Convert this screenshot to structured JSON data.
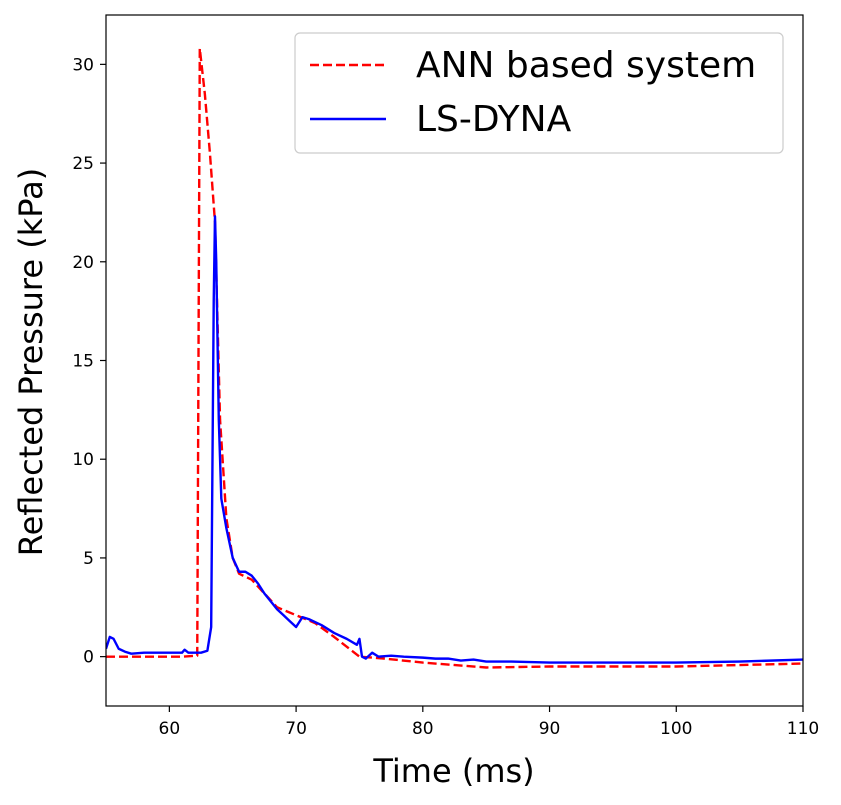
{
  "chart_data": {
    "type": "line",
    "xlabel": "Time (ms)",
    "ylabel": "Reflected Pressure (kPa)",
    "xlim": [
      55,
      110
    ],
    "ylim": [
      -2.5,
      32.5
    ],
    "xticks": [
      60,
      70,
      80,
      90,
      100,
      110
    ],
    "yticks": [
      0,
      5,
      10,
      15,
      20,
      25,
      30
    ],
    "grid": false,
    "legend_position": "top-right",
    "series": [
      {
        "name": "ANN based system",
        "color": "#ff0000",
        "style": "dashed",
        "points": [
          [
            55,
            0.0
          ],
          [
            58,
            0.0
          ],
          [
            61,
            0.0
          ],
          [
            62.2,
            0.05
          ],
          [
            62.4,
            30.8
          ],
          [
            62.8,
            28.5
          ],
          [
            63.2,
            25.5
          ],
          [
            63.6,
            22.0
          ],
          [
            64.0,
            12.0
          ],
          [
            64.5,
            7.0
          ],
          [
            65.0,
            5.0
          ],
          [
            65.5,
            4.2
          ],
          [
            66.5,
            3.9
          ],
          [
            67.5,
            3.2
          ],
          [
            68.5,
            2.5
          ],
          [
            70.0,
            2.1
          ],
          [
            71.5,
            1.7
          ],
          [
            73.0,
            1.0
          ],
          [
            75.0,
            0.0
          ],
          [
            77.0,
            -0.1
          ],
          [
            80.0,
            -0.3
          ],
          [
            85.0,
            -0.55
          ],
          [
            90.0,
            -0.5
          ],
          [
            100.0,
            -0.5
          ],
          [
            110.0,
            -0.35
          ]
        ]
      },
      {
        "name": "LS-DYNA",
        "color": "#0000ff",
        "style": "solid",
        "points": [
          [
            55.0,
            0.4
          ],
          [
            55.3,
            1.0
          ],
          [
            55.6,
            0.9
          ],
          [
            56.0,
            0.4
          ],
          [
            56.5,
            0.25
          ],
          [
            57.0,
            0.15
          ],
          [
            58.0,
            0.2
          ],
          [
            59.0,
            0.2
          ],
          [
            60.0,
            0.2
          ],
          [
            61.0,
            0.2
          ],
          [
            61.2,
            0.35
          ],
          [
            61.5,
            0.2
          ],
          [
            62.5,
            0.2
          ],
          [
            63.0,
            0.3
          ],
          [
            63.3,
            1.5
          ],
          [
            63.5,
            18.0
          ],
          [
            63.6,
            22.3
          ],
          [
            63.7,
            20.0
          ],
          [
            63.9,
            12.0
          ],
          [
            64.1,
            8.0
          ],
          [
            64.5,
            6.5
          ],
          [
            65.0,
            5.0
          ],
          [
            65.5,
            4.3
          ],
          [
            66.0,
            4.3
          ],
          [
            66.5,
            4.1
          ],
          [
            67.0,
            3.7
          ],
          [
            67.5,
            3.2
          ],
          [
            68.0,
            2.8
          ],
          [
            68.5,
            2.4
          ],
          [
            69.0,
            2.1
          ],
          [
            69.5,
            1.8
          ],
          [
            70.0,
            1.5
          ],
          [
            70.5,
            2.0
          ],
          [
            71.0,
            1.9
          ],
          [
            72.0,
            1.6
          ],
          [
            73.0,
            1.2
          ],
          [
            74.0,
            0.9
          ],
          [
            74.8,
            0.6
          ],
          [
            75.0,
            0.9
          ],
          [
            75.2,
            0.0
          ],
          [
            75.5,
            -0.1
          ],
          [
            76.0,
            0.2
          ],
          [
            76.5,
            0.0
          ],
          [
            77.5,
            0.05
          ],
          [
            78.5,
            0.0
          ],
          [
            80.0,
            -0.05
          ],
          [
            81.0,
            -0.1
          ],
          [
            82.0,
            -0.1
          ],
          [
            83.0,
            -0.2
          ],
          [
            84.0,
            -0.15
          ],
          [
            85.0,
            -0.25
          ],
          [
            87.0,
            -0.25
          ],
          [
            90.0,
            -0.3
          ],
          [
            95.0,
            -0.3
          ],
          [
            100.0,
            -0.3
          ],
          [
            105.0,
            -0.25
          ],
          [
            110.0,
            -0.15
          ]
        ]
      }
    ]
  }
}
